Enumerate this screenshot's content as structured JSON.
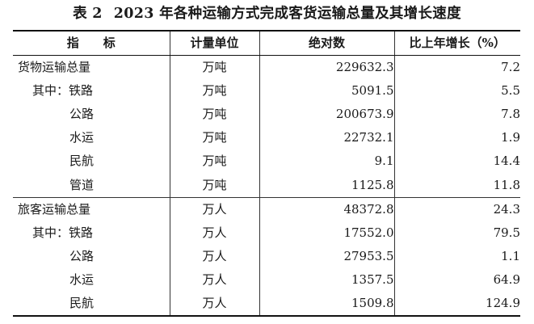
{
  "title": {
    "prefix": "表 2",
    "text": "2023 年各种运输方式完成客货运输总量及其增长速度"
  },
  "table": {
    "headers": {
      "indicator": "指　　标",
      "unit": "计量单位",
      "absolute": "绝对数",
      "growth": "比上年增长（%）"
    },
    "rows": [
      {
        "name": "货物运输总量",
        "unit": "万吨",
        "value": "229632.3",
        "growth": "7.2"
      },
      {
        "name": "其中：铁路",
        "unit": "万吨",
        "value": "5091.5",
        "growth": "5.5"
      },
      {
        "name": "公路",
        "unit": "万吨",
        "value": "200673.9",
        "growth": "7.8"
      },
      {
        "name": "水运",
        "unit": "万吨",
        "value": "22732.1",
        "growth": "1.9"
      },
      {
        "name": "民航",
        "unit": "万吨",
        "value": "9.1",
        "growth": "14.4"
      },
      {
        "name": "管道",
        "unit": "万吨",
        "value": "1125.8",
        "growth": "11.8"
      },
      {
        "name": "旅客运输总量",
        "unit": "万人",
        "value": "48372.8",
        "growth": "24.3"
      },
      {
        "name": "其中：铁路",
        "unit": "万人",
        "value": "17552.0",
        "growth": "79.5"
      },
      {
        "name": "公路",
        "unit": "万人",
        "value": "27953.5",
        "growth": "1.1"
      },
      {
        "name": "水运",
        "unit": "万人",
        "value": "1357.5",
        "growth": "64.9"
      },
      {
        "name": "民航",
        "unit": "万人",
        "value": "1509.8",
        "growth": "124.9"
      }
    ]
  }
}
